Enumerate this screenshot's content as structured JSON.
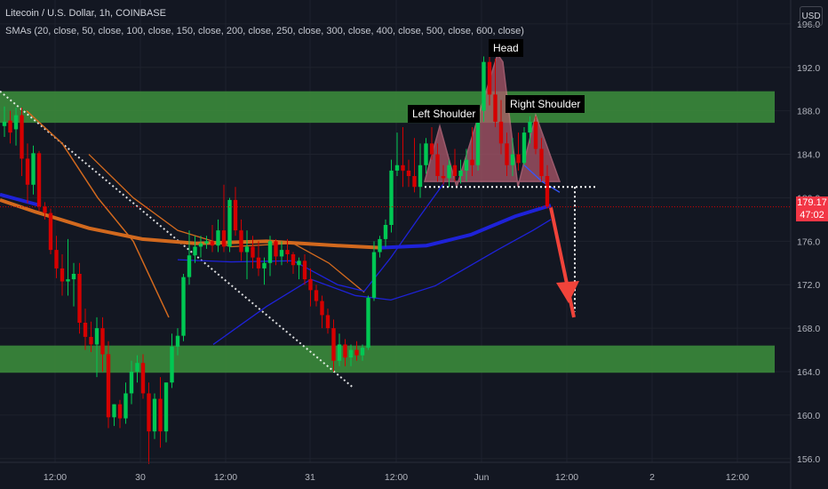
{
  "header": {
    "title": "Litecoin / U.S. Dollar, 1h, COINBASE",
    "indicator": "SMAs (20, close, 50, close, 100, close, 150, close, 200, close, 250, close, 300, close, 400, close, 500, close, 600, close)",
    "unit_button": "USD"
  },
  "price_label": {
    "value": "179.17",
    "countdown": "47:02",
    "color": "#f23645"
  },
  "annotations": {
    "left_shoulder": "Left Shoulder",
    "head": "Head",
    "right_shoulder": "Right Shoulder"
  },
  "colors": {
    "background": "#131722",
    "up": "#00c853",
    "down": "#d50000",
    "zone": "#3b8a3b",
    "pattern": "#b65a6e",
    "arrow": "#f0433a",
    "sma_orange": "#d2691e",
    "sma_blue": "#1e22d8"
  },
  "chart_data": {
    "type": "candlestick",
    "title": "Litecoin / U.S. Dollar, 1h, COINBASE",
    "y_ticks": [
      156,
      160,
      164,
      168,
      172,
      176,
      180,
      184,
      188,
      192,
      196
    ],
    "ylim": [
      153.2,
      198.2
    ],
    "x_ticks": [
      "12:00",
      "30",
      "12:00",
      "31",
      "12:00",
      "Jun",
      "12:00",
      "2",
      "12:00"
    ],
    "last_price": 179.17,
    "zones": [
      {
        "name": "resistance",
        "low": 186.9,
        "high": 189.8
      },
      {
        "name": "support",
        "low": 163.9,
        "high": 166.4
      }
    ],
    "neckline": 181.0,
    "target": 169.5,
    "candles": [
      {
        "o": 186.6,
        "h": 188.4,
        "l": 185.6,
        "c": 187.0
      },
      {
        "o": 187.1,
        "h": 188.0,
        "l": 185.0,
        "c": 186.0
      },
      {
        "o": 186.3,
        "h": 188.3,
        "l": 184.8,
        "c": 187.6
      },
      {
        "o": 187.6,
        "h": 188.3,
        "l": 182.0,
        "c": 183.6
      },
      {
        "o": 183.6,
        "h": 185.0,
        "l": 179.5,
        "c": 181.2
      },
      {
        "o": 181.2,
        "h": 184.8,
        "l": 180.3,
        "c": 184.1
      },
      {
        "o": 184.1,
        "h": 184.3,
        "l": 178.8,
        "c": 179.2
      },
      {
        "o": 179.2,
        "h": 179.6,
        "l": 178.0,
        "c": 178.6
      },
      {
        "o": 178.6,
        "h": 179.0,
        "l": 174.8,
        "c": 175.2
      },
      {
        "o": 175.2,
        "h": 176.5,
        "l": 172.6,
        "c": 173.5
      },
      {
        "o": 173.5,
        "h": 174.8,
        "l": 171.0,
        "c": 172.3
      },
      {
        "o": 172.3,
        "h": 176.2,
        "l": 171.0,
        "c": 172.5
      },
      {
        "o": 172.5,
        "h": 174.0,
        "l": 170.0,
        "c": 173.0
      },
      {
        "o": 173.0,
        "h": 174.0,
        "l": 167.5,
        "c": 168.5
      },
      {
        "o": 168.5,
        "h": 169.8,
        "l": 166.0,
        "c": 167.2
      },
      {
        "o": 167.2,
        "h": 168.6,
        "l": 165.8,
        "c": 166.5
      },
      {
        "o": 166.5,
        "h": 169.0,
        "l": 163.5,
        "c": 168.0
      },
      {
        "o": 168.0,
        "h": 169.0,
        "l": 164.0,
        "c": 165.6
      },
      {
        "o": 165.6,
        "h": 166.8,
        "l": 158.8,
        "c": 159.8
      },
      {
        "o": 159.8,
        "h": 161.0,
        "l": 159.0,
        "c": 161.0
      },
      {
        "o": 161.0,
        "h": 161.4,
        "l": 158.8,
        "c": 159.7
      },
      {
        "o": 159.7,
        "h": 163.0,
        "l": 159.2,
        "c": 162.0
      },
      {
        "o": 162.0,
        "h": 165.0,
        "l": 161.0,
        "c": 164.0
      },
      {
        "o": 164.0,
        "h": 165.5,
        "l": 163.0,
        "c": 164.8
      },
      {
        "o": 164.8,
        "h": 165.6,
        "l": 161.5,
        "c": 162.0
      },
      {
        "o": 162.0,
        "h": 163.0,
        "l": 155.5,
        "c": 158.5
      },
      {
        "o": 158.5,
        "h": 162.0,
        "l": 157.8,
        "c": 161.5
      },
      {
        "o": 161.5,
        "h": 163.5,
        "l": 157.0,
        "c": 158.5
      },
      {
        "o": 158.5,
        "h": 163.0,
        "l": 157.5,
        "c": 163.0
      },
      {
        "o": 163.0,
        "h": 167.5,
        "l": 162.5,
        "c": 166.3
      },
      {
        "o": 166.3,
        "h": 168.0,
        "l": 165.5,
        "c": 167.3
      },
      {
        "o": 167.3,
        "h": 173.0,
        "l": 166.8,
        "c": 172.7
      },
      {
        "o": 172.7,
        "h": 177.0,
        "l": 172.0,
        "c": 174.7
      },
      {
        "o": 174.7,
        "h": 176.5,
        "l": 174.0,
        "c": 175.5
      },
      {
        "o": 175.5,
        "h": 176.5,
        "l": 174.5,
        "c": 175.8
      },
      {
        "o": 175.8,
        "h": 176.5,
        "l": 175.3,
        "c": 176.0
      },
      {
        "o": 176.0,
        "h": 177.5,
        "l": 175.0,
        "c": 175.6
      },
      {
        "o": 175.6,
        "h": 178.0,
        "l": 175.0,
        "c": 177.0
      },
      {
        "o": 177.0,
        "h": 181.2,
        "l": 175.0,
        "c": 175.5
      },
      {
        "o": 175.5,
        "h": 180.0,
        "l": 175.0,
        "c": 179.8
      },
      {
        "o": 179.8,
        "h": 181.0,
        "l": 176.5,
        "c": 177.0
      },
      {
        "o": 177.0,
        "h": 178.0,
        "l": 174.2,
        "c": 175.0
      },
      {
        "o": 175.0,
        "h": 177.0,
        "l": 172.5,
        "c": 175.5
      },
      {
        "o": 175.5,
        "h": 176.5,
        "l": 173.5,
        "c": 174.5
      },
      {
        "o": 174.5,
        "h": 176.0,
        "l": 172.8,
        "c": 173.5
      },
      {
        "o": 173.5,
        "h": 174.5,
        "l": 172.0,
        "c": 174.0
      },
      {
        "o": 174.0,
        "h": 176.5,
        "l": 172.8,
        "c": 176.0
      },
      {
        "o": 176.0,
        "h": 176.2,
        "l": 173.8,
        "c": 174.6
      },
      {
        "o": 174.6,
        "h": 176.0,
        "l": 173.8,
        "c": 175.2
      },
      {
        "o": 175.2,
        "h": 176.2,
        "l": 174.0,
        "c": 174.8
      },
      {
        "o": 174.8,
        "h": 175.0,
        "l": 173.0,
        "c": 173.8
      },
      {
        "o": 173.8,
        "h": 174.5,
        "l": 172.5,
        "c": 174.2
      },
      {
        "o": 174.2,
        "h": 174.8,
        "l": 172.0,
        "c": 172.5
      },
      {
        "o": 172.5,
        "h": 173.5,
        "l": 170.0,
        "c": 171.5
      },
      {
        "o": 171.5,
        "h": 172.0,
        "l": 170.0,
        "c": 170.5
      },
      {
        "o": 170.5,
        "h": 171.0,
        "l": 168.0,
        "c": 169.2
      },
      {
        "o": 169.2,
        "h": 169.8,
        "l": 167.5,
        "c": 168.0
      },
      {
        "o": 168.0,
        "h": 168.8,
        "l": 164.0,
        "c": 165.0
      },
      {
        "o": 165.0,
        "h": 167.5,
        "l": 164.5,
        "c": 166.5
      },
      {
        "o": 166.5,
        "h": 167.0,
        "l": 164.5,
        "c": 165.3
      },
      {
        "o": 165.3,
        "h": 166.5,
        "l": 164.5,
        "c": 166.0
      },
      {
        "o": 166.0,
        "h": 166.8,
        "l": 165.0,
        "c": 165.5
      },
      {
        "o": 165.5,
        "h": 166.5,
        "l": 165.0,
        "c": 166.2
      },
      {
        "o": 166.2,
        "h": 171.0,
        "l": 166.0,
        "c": 170.8
      },
      {
        "o": 170.8,
        "h": 176.0,
        "l": 170.5,
        "c": 175.0
      },
      {
        "o": 175.0,
        "h": 176.5,
        "l": 174.5,
        "c": 176.2
      },
      {
        "o": 176.2,
        "h": 178.0,
        "l": 175.5,
        "c": 177.5
      },
      {
        "o": 177.5,
        "h": 183.5,
        "l": 176.8,
        "c": 182.5
      },
      {
        "o": 182.5,
        "h": 186.0,
        "l": 182.0,
        "c": 183.0
      },
      {
        "o": 183.0,
        "h": 186.5,
        "l": 181.0,
        "c": 182.5
      },
      {
        "o": 182.5,
        "h": 183.5,
        "l": 181.0,
        "c": 182.0
      },
      {
        "o": 182.0,
        "h": 185.5,
        "l": 180.5,
        "c": 181.0
      },
      {
        "o": 181.0,
        "h": 185.0,
        "l": 180.0,
        "c": 183.0
      },
      {
        "o": 183.0,
        "h": 185.5,
        "l": 182.2,
        "c": 185.0
      },
      {
        "o": 185.0,
        "h": 186.5,
        "l": 183.5,
        "c": 184.0
      },
      {
        "o": 184.0,
        "h": 185.0,
        "l": 181.5,
        "c": 182.0
      },
      {
        "o": 182.0,
        "h": 183.0,
        "l": 181.2,
        "c": 181.8
      },
      {
        "o": 181.8,
        "h": 183.5,
        "l": 181.0,
        "c": 183.0
      },
      {
        "o": 183.0,
        "h": 184.5,
        "l": 181.5,
        "c": 182.0
      },
      {
        "o": 182.0,
        "h": 183.5,
        "l": 181.3,
        "c": 182.5
      },
      {
        "o": 182.5,
        "h": 184.5,
        "l": 181.5,
        "c": 183.5
      },
      {
        "o": 183.5,
        "h": 186.5,
        "l": 182.0,
        "c": 183.0
      },
      {
        "o": 183.0,
        "h": 188.5,
        "l": 182.5,
        "c": 188.0
      },
      {
        "o": 188.0,
        "h": 193.0,
        "l": 187.0,
        "c": 192.5
      },
      {
        "o": 192.5,
        "h": 193.0,
        "l": 188.5,
        "c": 189.5
      },
      {
        "o": 189.5,
        "h": 192.8,
        "l": 186.5,
        "c": 187.0
      },
      {
        "o": 187.0,
        "h": 189.0,
        "l": 184.0,
        "c": 185.0
      },
      {
        "o": 185.0,
        "h": 186.0,
        "l": 182.0,
        "c": 183.0
      },
      {
        "o": 183.0,
        "h": 185.5,
        "l": 182.0,
        "c": 184.0
      },
      {
        "o": 184.0,
        "h": 186.0,
        "l": 182.5,
        "c": 183.2
      },
      {
        "o": 183.2,
        "h": 186.5,
        "l": 183.0,
        "c": 186.0
      },
      {
        "o": 186.0,
        "h": 187.5,
        "l": 185.0,
        "c": 187.0
      },
      {
        "o": 187.0,
        "h": 187.5,
        "l": 184.0,
        "c": 184.5
      },
      {
        "o": 184.5,
        "h": 185.5,
        "l": 181.5,
        "c": 182.0
      },
      {
        "o": 182.0,
        "h": 183.0,
        "l": 179.0,
        "c": 179.2
      }
    ]
  }
}
